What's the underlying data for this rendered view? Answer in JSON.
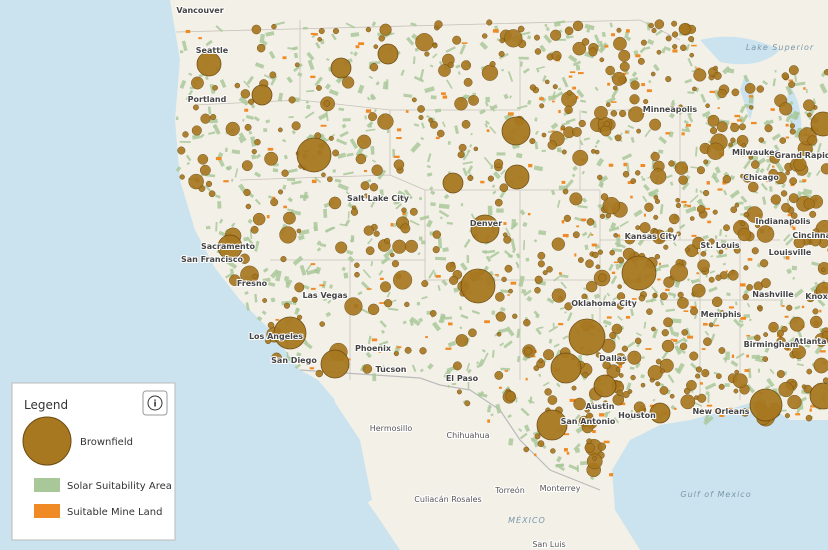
{
  "map": {
    "labels": [
      "Vancouver",
      "Seattle",
      "Portland",
      "Sacramento",
      "San Francisco",
      "Fresno",
      "Las Vegas",
      "Los Angeles",
      "San Diego",
      "Phoenix",
      "Tucson",
      "El Paso",
      "Salt Lake City",
      "Denver",
      "Kansas City",
      "St. Louis",
      "Oklahoma City",
      "Dallas",
      "Austin",
      "San Antonio",
      "Houston",
      "New Orleans",
      "Memphis",
      "Nashville",
      "Atlanta",
      "Birmingham",
      "Louisville",
      "Indianapolis",
      "Chicago",
      "Milwaukee",
      "Minneapolis",
      "Grand Rapids",
      "Cincinnati",
      "Knoxville",
      "Hermosillo",
      "Chihuahua",
      "Culiacán Rosales",
      "Torreón",
      "Monterrey",
      "San Luis",
      "MÉXICO",
      "Gulf of Mexico",
      "Lake Superior"
    ]
  },
  "legend": {
    "title": "Legend",
    "info": "i",
    "items": [
      "Brownfield",
      "Solar Suitability Area",
      "Suitable Mine Land"
    ]
  }
}
